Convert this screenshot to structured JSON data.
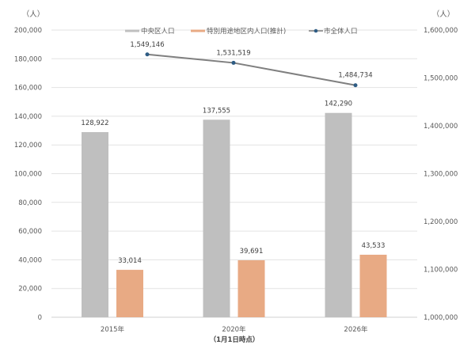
{
  "chart_data": {
    "type": "bar+line",
    "title": "",
    "categories": [
      "2015年",
      "2020年",
      "2026年"
    ],
    "x_caption": "（1月1日時点）",
    "left_axis": {
      "unit_label": "（人）",
      "ylim": [
        0,
        200000
      ],
      "ticks": [
        "0",
        "20,000",
        "40,000",
        "60,000",
        "80,000",
        "100,000",
        "120,000",
        "140,000",
        "160,000",
        "180,000",
        "200,000"
      ]
    },
    "right_axis": {
      "unit_label": "（人）",
      "ylim": [
        1000000,
        1600000
      ],
      "ticks": [
        "1,000,000",
        "1,100,000",
        "1,200,000",
        "1,300,000",
        "1,400,000",
        "1,500,000",
        "1,600,000"
      ]
    },
    "series": [
      {
        "name": "中央区人口",
        "type": "bar",
        "axis": "left",
        "color": "#BFBFBF",
        "values": [
          128922,
          137555,
          142290
        ],
        "labels": [
          "128,922",
          "137,555",
          "142,290"
        ]
      },
      {
        "name": "特別用途地区内人口(推計)",
        "type": "bar",
        "axis": "left",
        "color": "#E8AA84",
        "values": [
          33014,
          39691,
          43533
        ],
        "labels": [
          "33,014",
          "39,691",
          "43,533"
        ]
      },
      {
        "name": "市全体人口",
        "type": "line",
        "axis": "right",
        "color": "#7F7F7F",
        "marker_color": "#2E5C84",
        "values": [
          1549146,
          1531519,
          1484734
        ],
        "labels": [
          "1,549,146",
          "1,531,519",
          "1,484,734"
        ]
      }
    ],
    "grid": true,
    "legend_position": "top"
  }
}
